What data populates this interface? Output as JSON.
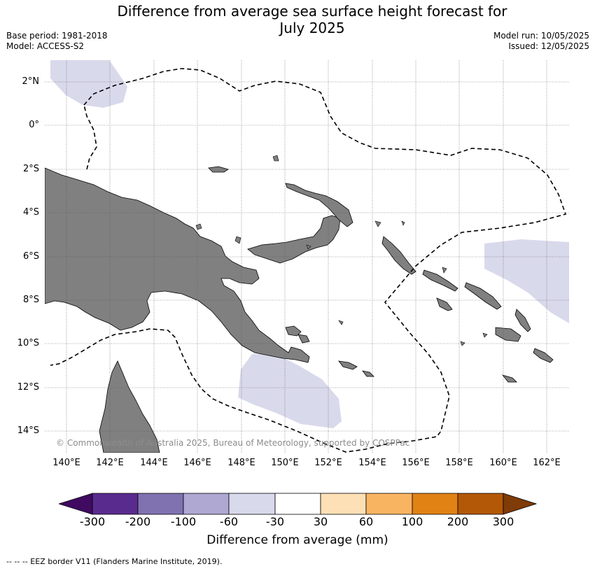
{
  "title_line1": "Difference from average sea surface height forecast for",
  "title_line2": "July 2025",
  "meta": {
    "base_period": "Base period: 1981-2018",
    "model": "Model: ACCESS-S2",
    "model_run": "Model run: 10/05/2025",
    "issued": "Issued: 12/05/2025"
  },
  "lat_labels": [
    "2°N",
    "0°",
    "2°S",
    "4°S",
    "6°S",
    "8°S",
    "10°S",
    "12°S",
    "14°S"
  ],
  "lon_labels": [
    "140°E",
    "142°E",
    "144°E",
    "146°E",
    "148°E",
    "150°E",
    "152°E",
    "154°E",
    "156°E",
    "158°E",
    "160°E",
    "162°E"
  ],
  "copyright": "© Commonwealth of Australia 2025, Bureau of Meteorology, supported by COSPPac",
  "colorbar": {
    "ticks": [
      "-300",
      "-200",
      "-100",
      "-60",
      "-30",
      "30",
      "60",
      "100",
      "200",
      "300"
    ],
    "colors": [
      "#3f0a60",
      "#5a2b8e",
      "#8072b0",
      "#afa8d3",
      "#d9d9ec",
      "#ffffff",
      "#fde0b5",
      "#f9b461",
      "#e08214",
      "#b35806",
      "#7f3b08"
    ],
    "label": "Difference from average (mm)"
  },
  "footnote": "--  --  -- EEZ border V11 (Flanders Marine Institute, 2019).",
  "colors": {
    "land": "#808080",
    "anomaly_minus_30": "#d9d9ec",
    "grid": "#555555"
  },
  "map_extent": {
    "lon_min": 139,
    "lon_max": 163,
    "lat_min": -15,
    "lat_max": 3
  }
}
